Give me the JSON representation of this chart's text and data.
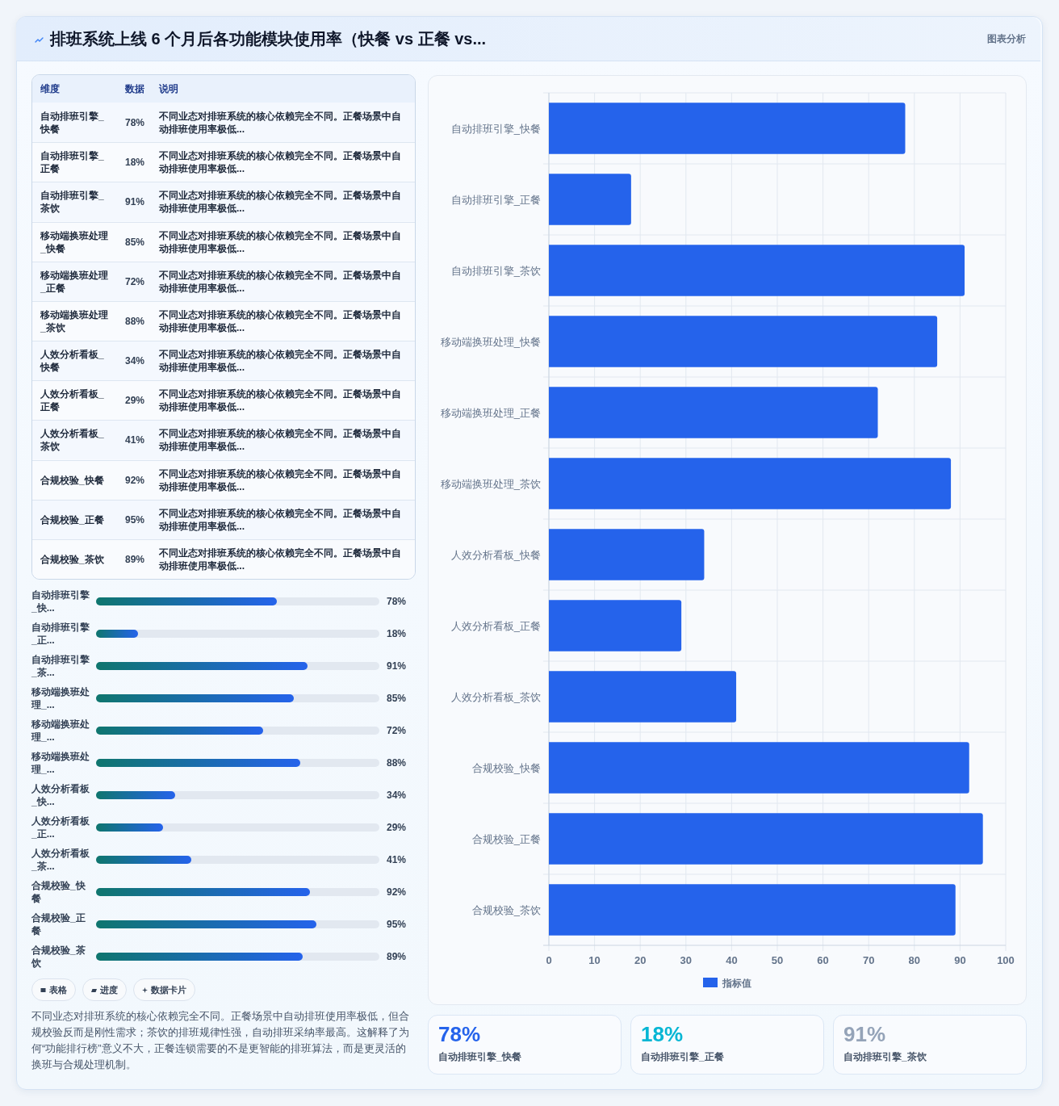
{
  "chart_data": [
    {
      "type": "other",
      "title": "排班系统上线 6 个月后各功能模块使用率（快餐 vs 正餐 vs...",
      "subtitle": "图表分析",
      "categories": [
        "自动排班引擎_快餐",
        "自动排班引擎_正餐",
        "自动排班引擎_茶饮",
        "移动端换班处理_快餐",
        "移动端换班处理_正餐",
        "移动端换班处理_茶饮",
        "人效分析看板_快餐",
        "人效分析看板_正餐",
        "人效分析看板_茶饮",
        "合规校验_快餐",
        "合规校验_正餐",
        "合规校验_茶饮"
      ],
      "values": [
        78,
        18,
        91,
        85,
        72,
        88,
        34,
        29,
        41,
        92,
        95,
        89
      ],
      "value_labels": [
        "78%",
        "18%",
        "91%",
        "85%",
        "72%",
        "88%",
        "34%",
        "29%",
        "41%",
        "92%",
        "95%",
        "89%"
      ],
      "annotations": [
        "维度",
        "数据",
        "说明",
        "不同业态对排班系统的核心依赖完全不同。正餐场景中自动排班使用率极低...",
        "不同业态对排班系统的核心依赖完全不同。正餐场景中自动排班使用率极低...",
        "不同业态对排班系统的核心依赖完全不同。正餐场景中自动排班使用率极低...",
        "不同业态对排班系统的核心依赖完全不同。正餐场景中自动排班使用率极低...",
        "不同业态对排班系统的核心依赖完全不同。正餐场景中自动排班使用率极低...",
        "不同业态对排班系统的核心依赖完全不同。正餐场景中自动排班使用率极低...",
        "不同业态对排班系统的核心依赖完全不同。正餐场景中自动排班使用率极低...",
        "不同业态对排班系统的核心依赖完全不同。正餐场景中自动排班使用率极低...",
        "不同业态对排班系统的核心依赖完全不同。正餐场景中自动排班使用率极低...",
        "不同业态对排班系统的核心依赖完全不同。正餐场景中自动排班使用率极低...",
        "不同业态对排班系统的核心依赖完全不同。正餐场景中自动排班使用率极低...",
        "不同业态对排班系统的核心依赖完全不同。正餐场景中自动排班使用率极低..."
      ]
    },
    {
      "type": "bar",
      "orientation": "horizontal",
      "categories": [
        "自动排班引擎_快...",
        "自动排班引擎_正...",
        "自动排班引擎_茶...",
        "移动端换班处理_...",
        "移动端换班处理_...",
        "移动端换班处理_...",
        "人效分析看板_快...",
        "人效分析看板_正...",
        "人效分析看板_茶...",
        "合规校验_快餐",
        "合规校验_正餐",
        "合规校验_茶饮"
      ],
      "values": [
        78,
        18,
        91,
        85,
        72,
        88,
        34,
        29,
        41,
        92,
        95,
        89
      ],
      "value_labels": [
        "78%",
        "18%",
        "91%",
        "85%",
        "72%",
        "88%",
        "34%",
        "29%",
        "41%",
        "92%",
        "95%",
        "89%"
      ],
      "color": "#2563eb",
      "xlim": [
        0,
        122
      ],
      "tick_labels": "y",
      "annotations": [
        "表格",
        "进度",
        "数据卡片",
        "不同业态对排班系统的核心依赖完全不同。正餐场景中自动排班使用率极低，但合规校验反而是刚性需求；茶饮的排班规律性强，自动排班采纳率最高。这解释了为何“功能排行榜”意义不大，正餐连锁需要的不是更智能的排班算法，而是更灵活的换班与合规处理机制。"
      ]
    },
    {
      "type": "bar",
      "orientation": "horizontal",
      "categories": [
        "自动排班引擎_快餐",
        "自动排班引擎_正餐",
        "自动排班引擎_茶饮",
        "移动端换班处理_快餐",
        "移动端换班处理_正餐",
        "移动端换班处理_茶饮",
        "人效分析看板_快餐",
        "人效分析看板_正餐",
        "人效分析看板_茶饮",
        "合规校验_快餐",
        "合规校验_正餐",
        "合规校验_茶饮"
      ],
      "series": [
        {
          "name": "指标值",
          "color": "#2563eb",
          "values": [
            78,
            18,
            91,
            85,
            72,
            88,
            34,
            29,
            41,
            92,
            95,
            89
          ]
        }
      ],
      "xlim": [
        0,
        100
      ],
      "xticks": [
        0,
        10,
        20,
        30,
        40,
        50,
        60,
        70,
        80,
        90,
        100
      ],
      "grid": true,
      "legend": "bottom"
    },
    {
      "type": "other",
      "categories": [
        "自动排班引擎_快餐",
        "自动排班引擎_正餐",
        "自动排班引擎_茶饮"
      ],
      "values": [
        78,
        18,
        91
      ],
      "value_labels": [
        "78%",
        "18%",
        "91%"
      ]
    }
  ]
}
